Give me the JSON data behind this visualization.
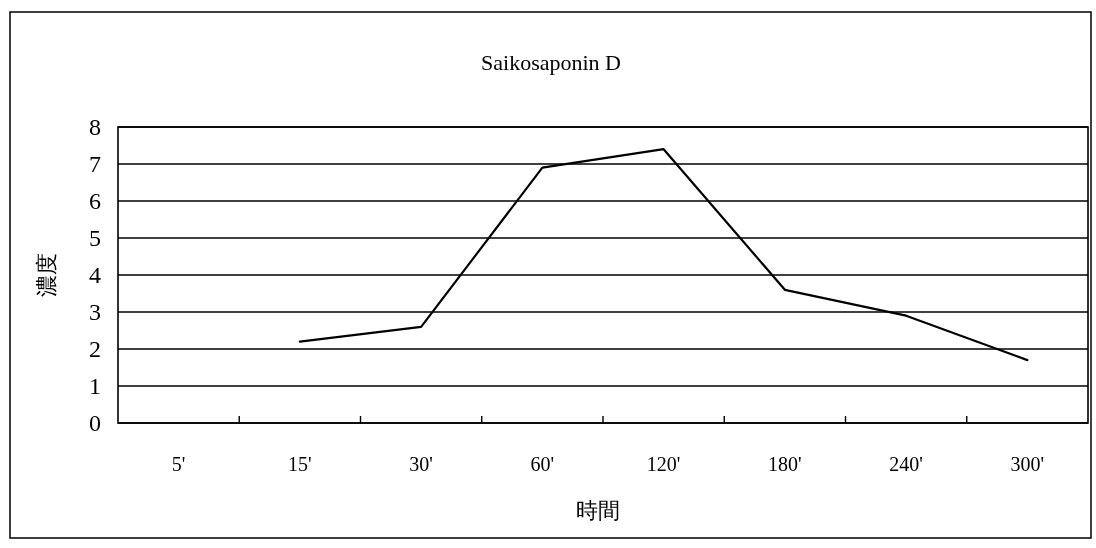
{
  "chart_data": {
    "type": "line",
    "title": "Saikosaponin D",
    "xlabel": "時間",
    "ylabel": "濃度",
    "categories": [
      "5'",
      "15'",
      "30'",
      "60'",
      "120'",
      "180'",
      "240'",
      "300'"
    ],
    "series": [
      {
        "color": "#000000",
        "values": [
          null,
          2.2,
          2.6,
          6.9,
          7.4,
          3.6,
          2.9,
          1.7
        ]
      }
    ],
    "ylim": [
      0,
      8
    ],
    "yticks": [
      0,
      1,
      2,
      3,
      4,
      5,
      6,
      7,
      8
    ],
    "grid": "y",
    "marker": "none",
    "line_style": "solid"
  }
}
